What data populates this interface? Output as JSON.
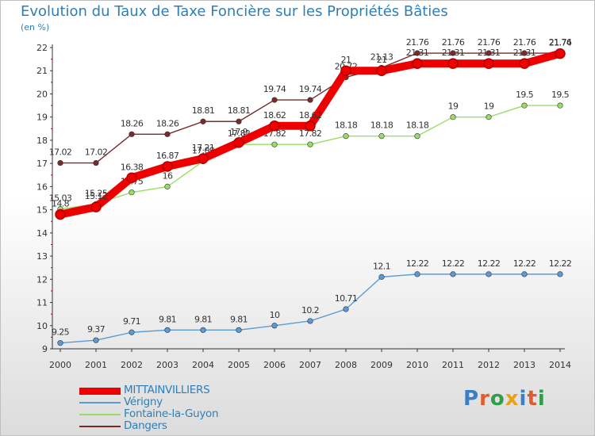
{
  "header": {
    "title": "Evolution du Taux de Taxe Foncière sur les Propriétés Bâties",
    "subtitle": "(en %)"
  },
  "logo": {
    "letters": [
      "P",
      "r",
      "o",
      "x",
      "i",
      "t",
      "i"
    ],
    "colors": [
      "#3a7fc1",
      "#e25b2a",
      "#2f9e4a",
      "#e8a21a",
      "#3a7fc1",
      "#e25b2a",
      "#2f9e4a"
    ]
  },
  "chart_data": {
    "type": "line",
    "x": [
      "2000",
      "2001",
      "2002",
      "2003",
      "2004",
      "2005",
      "2006",
      "2007",
      "2008",
      "2009",
      "2010",
      "2011",
      "2012",
      "2013",
      "2014"
    ],
    "ylim": [
      9,
      22
    ],
    "yticks": [
      "9",
      "10",
      "11",
      "12",
      "13",
      "14",
      "15",
      "16",
      "17",
      "18",
      "19",
      "20",
      "21",
      "22"
    ],
    "series": [
      {
        "name": "Dangers",
        "color": "#7a2a2a",
        "values": [
          17.02,
          17.02,
          18.26,
          18.26,
          18.81,
          18.81,
          19.74,
          19.74,
          20.72,
          21.13,
          21.76,
          21.76,
          21.76,
          21.76,
          21.76
        ],
        "labels": [
          "17.02",
          "17.02",
          "18.26",
          "18.26",
          "18.81",
          "18.81",
          "19.74",
          "19.74",
          "20.72",
          "21.13",
          "21.76",
          "21.76",
          "21.76",
          "21.76",
          "21.76"
        ]
      },
      {
        "name": "Fontaine-la-Guyon",
        "color": "#99dd66",
        "values": [
          15.03,
          15.25,
          15.75,
          16,
          17.09,
          17.82,
          17.82,
          17.82,
          18.18,
          18.18,
          18.18,
          19,
          19,
          19.5,
          19.5
        ],
        "labels": [
          "15.03",
          "15.25",
          "15.75",
          "16",
          "17.09",
          "17.82",
          "17.82",
          "17.82",
          "18.18",
          "18.18",
          "18.18",
          "19",
          "19",
          "19.5",
          "19.5"
        ]
      },
      {
        "name": "Vérigny",
        "color": "#5b9bd5",
        "values": [
          9.25,
          9.37,
          9.71,
          9.81,
          9.81,
          9.81,
          10,
          10.2,
          10.71,
          12.1,
          12.22,
          12.22,
          12.22,
          12.22,
          12.22
        ],
        "labels": [
          "9.25",
          "9.37",
          "9.71",
          "9.81",
          "9.81",
          "9.81",
          "10",
          "10.2",
          "10.71",
          "12.1",
          "12.22",
          "12.22",
          "12.22",
          "12.22",
          "12.22"
        ]
      },
      {
        "name": "MITTAINVILLIERS",
        "color": "#ee0000",
        "values": [
          14.8,
          15.12,
          16.38,
          16.87,
          17.21,
          17.9,
          18.62,
          18.62,
          21,
          21,
          21.31,
          21.31,
          21.31,
          21.31,
          21.74
        ],
        "labels": [
          "14.8",
          "15.12",
          "16.38",
          "16.87",
          "17.21",
          "17.9",
          "18.62",
          "18.62",
          "21",
          "21",
          "21.31",
          "21.31",
          "21.31",
          "21.31",
          "21.74"
        ]
      }
    ],
    "legend_order": [
      "MITTAINVILLIERS",
      "Vérigny",
      "Fontaine-la-Guyon",
      "Dangers"
    ],
    "grid": false,
    "legend_position": "bottom-left"
  }
}
